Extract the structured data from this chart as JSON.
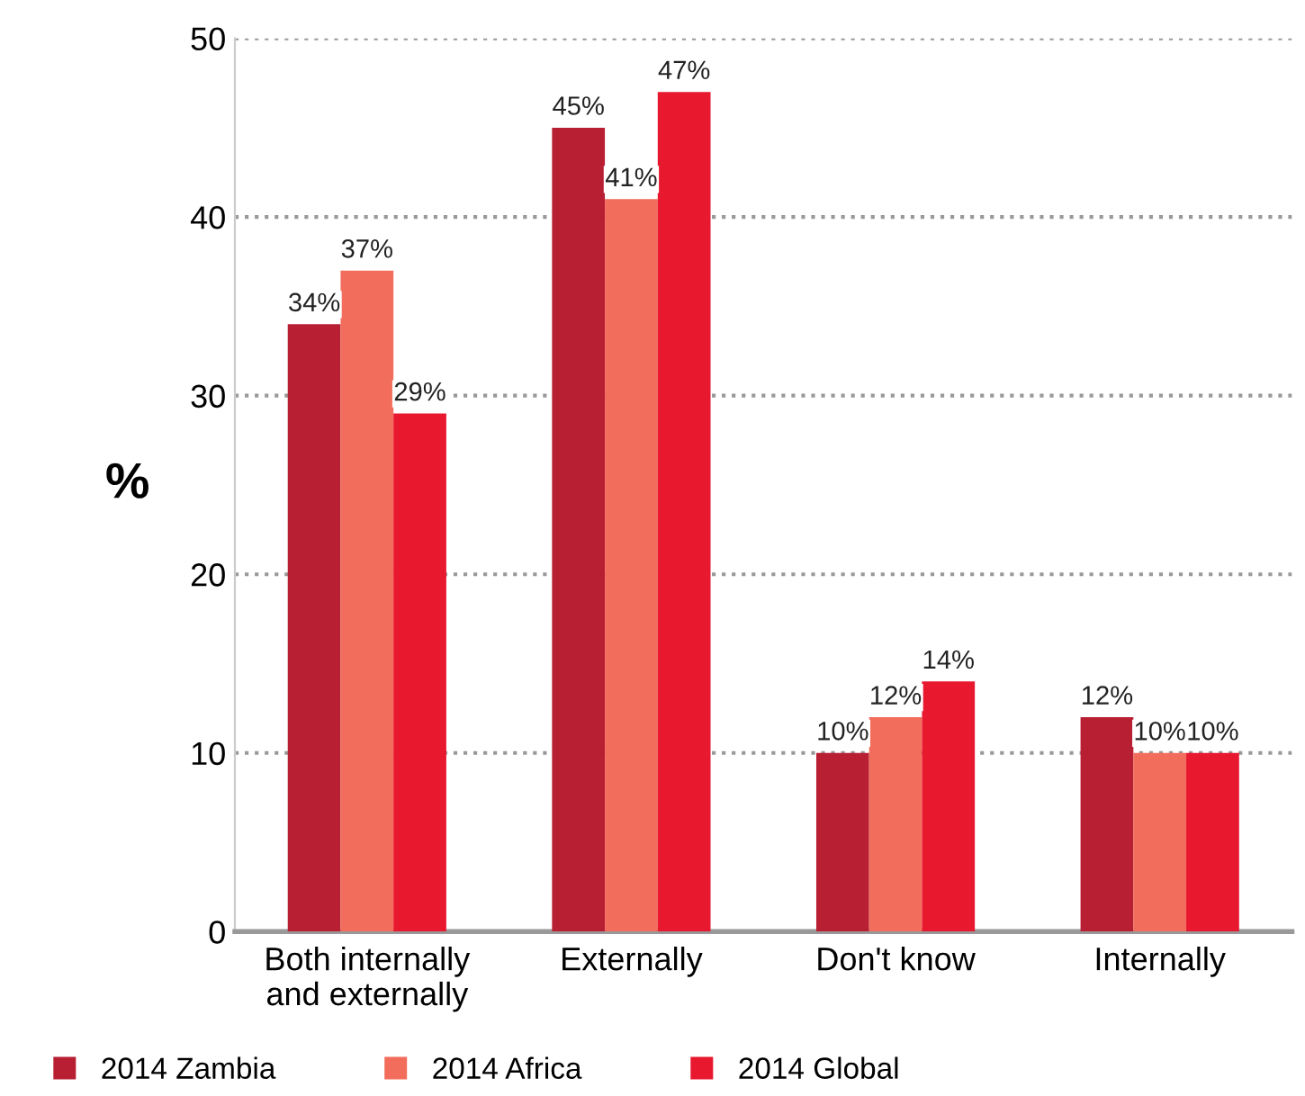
{
  "chart_data": {
    "type": "bar",
    "ylabel": "%",
    "categories": [
      "Both internally\nand externally",
      "Externally",
      "Don't know",
      "Internally"
    ],
    "series": [
      {
        "name": "2014 Zambia",
        "color": "#b81f33",
        "values": [
          34,
          45,
          10,
          12
        ],
        "value_labels": [
          "34%",
          "45%",
          "10%",
          "12%"
        ]
      },
      {
        "name": "2014 Africa",
        "color": "#f26d5b",
        "values": [
          37,
          41,
          12,
          10
        ],
        "value_labels": [
          "37%",
          "41%",
          "12%",
          "10%"
        ]
      },
      {
        "name": "2014 Global",
        "color": "#e8182f",
        "values": [
          29,
          47,
          14,
          10
        ],
        "value_labels": [
          "29%",
          "47%",
          "14%",
          "10%"
        ]
      }
    ],
    "ylim": [
      0,
      50
    ],
    "yticks": [
      0,
      10,
      20,
      30,
      40,
      50
    ],
    "grid": "y",
    "legend": "bottom"
  }
}
